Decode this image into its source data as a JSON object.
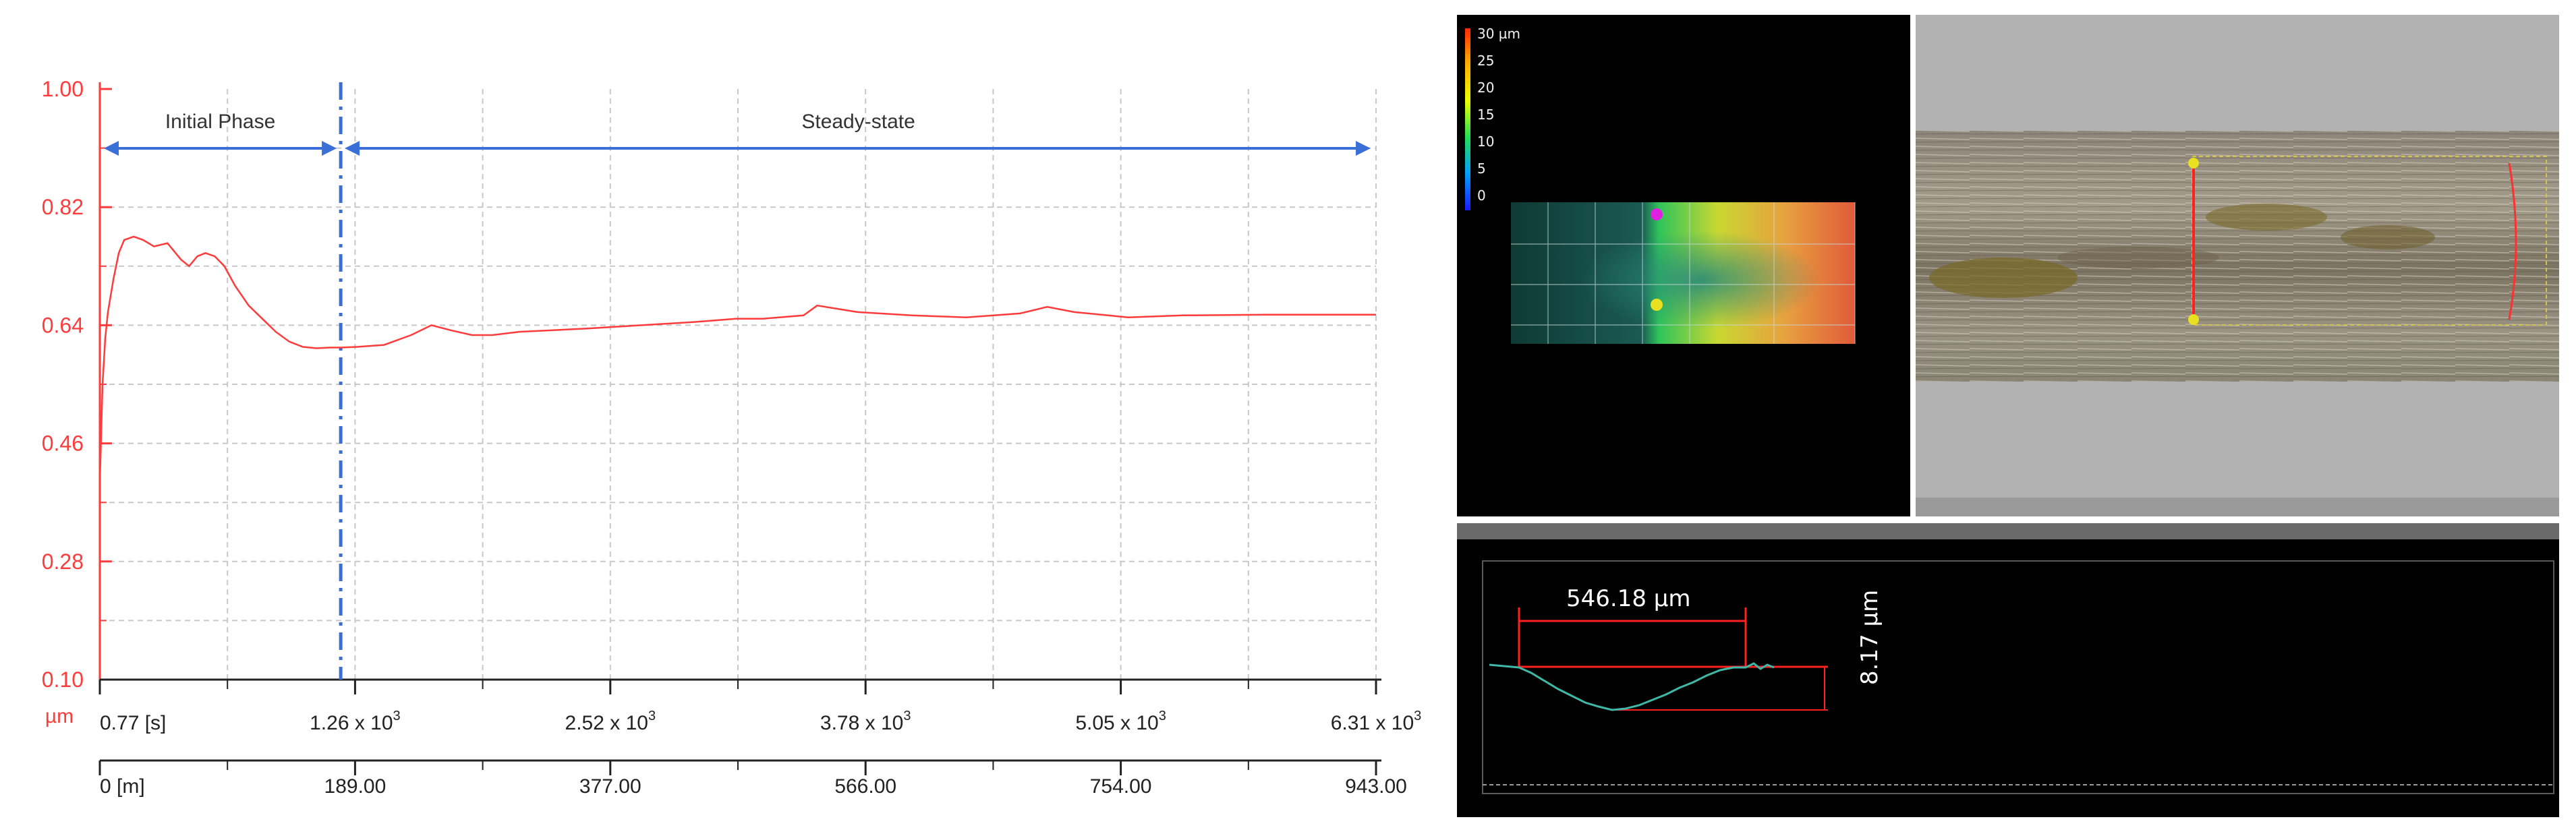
{
  "chart_data": {
    "type": "line",
    "y_unit": "µm",
    "ylim": [
      0.1,
      1.0
    ],
    "y_ticks": [
      "1.00",
      "0.82",
      "0.64",
      "0.46",
      "0.28",
      "0.10"
    ],
    "x_time_ticks": [
      {
        "mant": "0.77 [s]",
        "exp": ""
      },
      {
        "mant": "1.26 x 10",
        "exp": "3"
      },
      {
        "mant": "2.52 x 10",
        "exp": "3"
      },
      {
        "mant": "3.78 x 10",
        "exp": "3"
      },
      {
        "mant": "5.05 x 10",
        "exp": "3"
      },
      {
        "mant": "6.31 x 10",
        "exp": "3"
      }
    ],
    "x_dist_ticks": [
      "0 [m]",
      "189.00",
      "377.00",
      "566.00",
      "754.00",
      "943.00"
    ],
    "xlim_m": [
      0,
      943
    ],
    "phase_boundary_m": 178,
    "annotations": {
      "initial": "Initial Phase",
      "steady": "Steady-state"
    },
    "grid": true,
    "series": [
      {
        "color": "#ff3b3b",
        "x": [
          0,
          2,
          4,
          6,
          10,
          14,
          18,
          25,
          32,
          40,
          50,
          60,
          66,
          72,
          78,
          85,
          92,
          100,
          110,
          120,
          130,
          140,
          150,
          160,
          170,
          178,
          190,
          210,
          230,
          245,
          260,
          275,
          290,
          310,
          330,
          360,
          400,
          440,
          470,
          490,
          520,
          530,
          560,
          600,
          640,
          680,
          700,
          720,
          760,
          800,
          860,
          943
        ],
        "y": [
          0.4,
          0.55,
          0.62,
          0.66,
          0.71,
          0.75,
          0.77,
          0.775,
          0.77,
          0.76,
          0.765,
          0.74,
          0.73,
          0.745,
          0.75,
          0.745,
          0.73,
          0.7,
          0.67,
          0.65,
          0.63,
          0.615,
          0.607,
          0.605,
          0.606,
          0.606,
          0.607,
          0.61,
          0.625,
          0.64,
          0.632,
          0.625,
          0.625,
          0.63,
          0.632,
          0.635,
          0.64,
          0.645,
          0.65,
          0.65,
          0.655,
          0.67,
          0.66,
          0.655,
          0.652,
          0.658,
          0.668,
          0.66,
          0.652,
          0.655,
          0.656,
          0.656
        ]
      }
    ]
  },
  "panels": {
    "colorbar_ticks": [
      "30 µm",
      "25",
      "20",
      "15",
      "10",
      "5",
      "0"
    ],
    "profile_width": "546.18  µm",
    "profile_depth": "8.17  µm"
  }
}
